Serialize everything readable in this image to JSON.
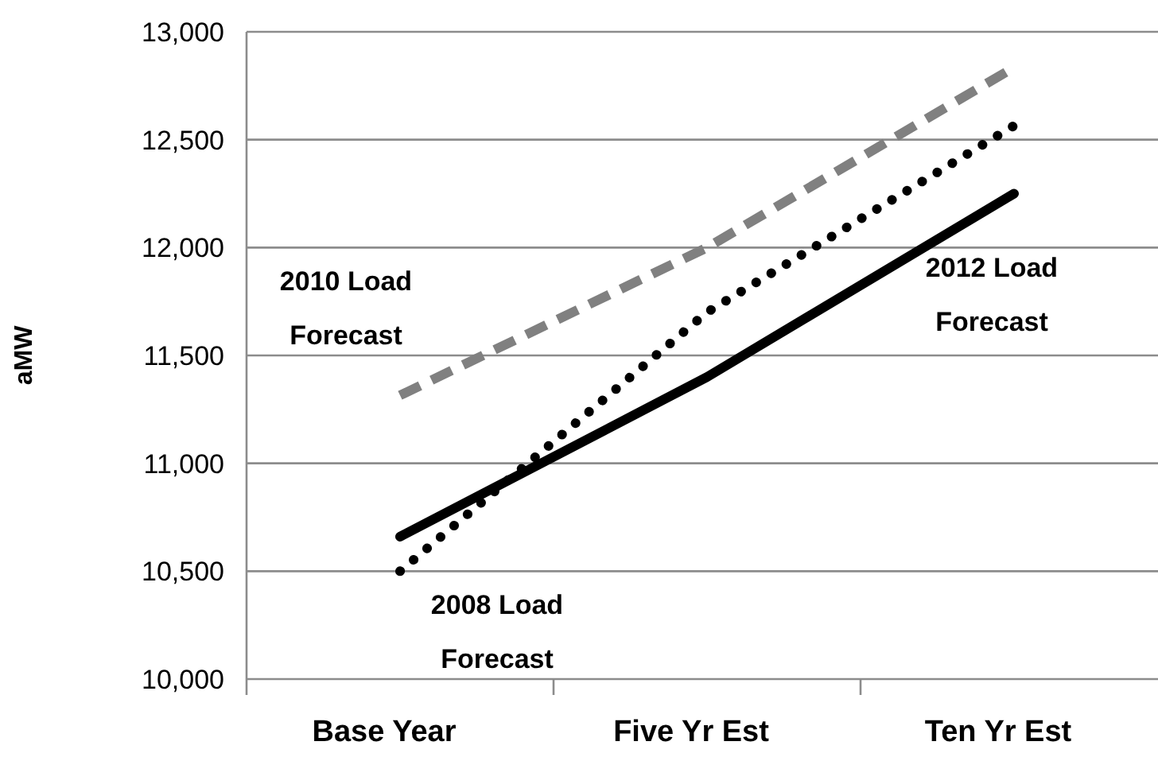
{
  "chart_data": {
    "type": "line",
    "ylabel": "aMW",
    "categories": [
      "Base Year",
      "Five Yr Est",
      "Ten Yr Est"
    ],
    "ylim": [
      10000,
      13000
    ],
    "yticks": [
      {
        "value": 10000,
        "label": "10,000"
      },
      {
        "value": 10500,
        "label": "10,500"
      },
      {
        "value": 11000,
        "label": "11,000"
      },
      {
        "value": 11500,
        "label": "11,500"
      },
      {
        "value": 12000,
        "label": "12,000"
      },
      {
        "value": 12500,
        "label": "12,500"
      },
      {
        "value": 13000,
        "label": "13,000"
      }
    ],
    "grid": "y",
    "marker": "none",
    "series": [
      {
        "name": "2010 Load Forecast",
        "color": "#808080",
        "line_style": "dashed",
        "values": [
          11315,
          12000,
          12835
        ]
      },
      {
        "name": "2008 Load Forecast",
        "color": "#000000",
        "line_style": "dotted",
        "values": [
          10500,
          11700,
          12565
        ]
      },
      {
        "name": "2012 Load Forecast",
        "color": "#000000",
        "line_style": "solid",
        "values": [
          10660,
          11400,
          12250
        ]
      }
    ]
  }
}
